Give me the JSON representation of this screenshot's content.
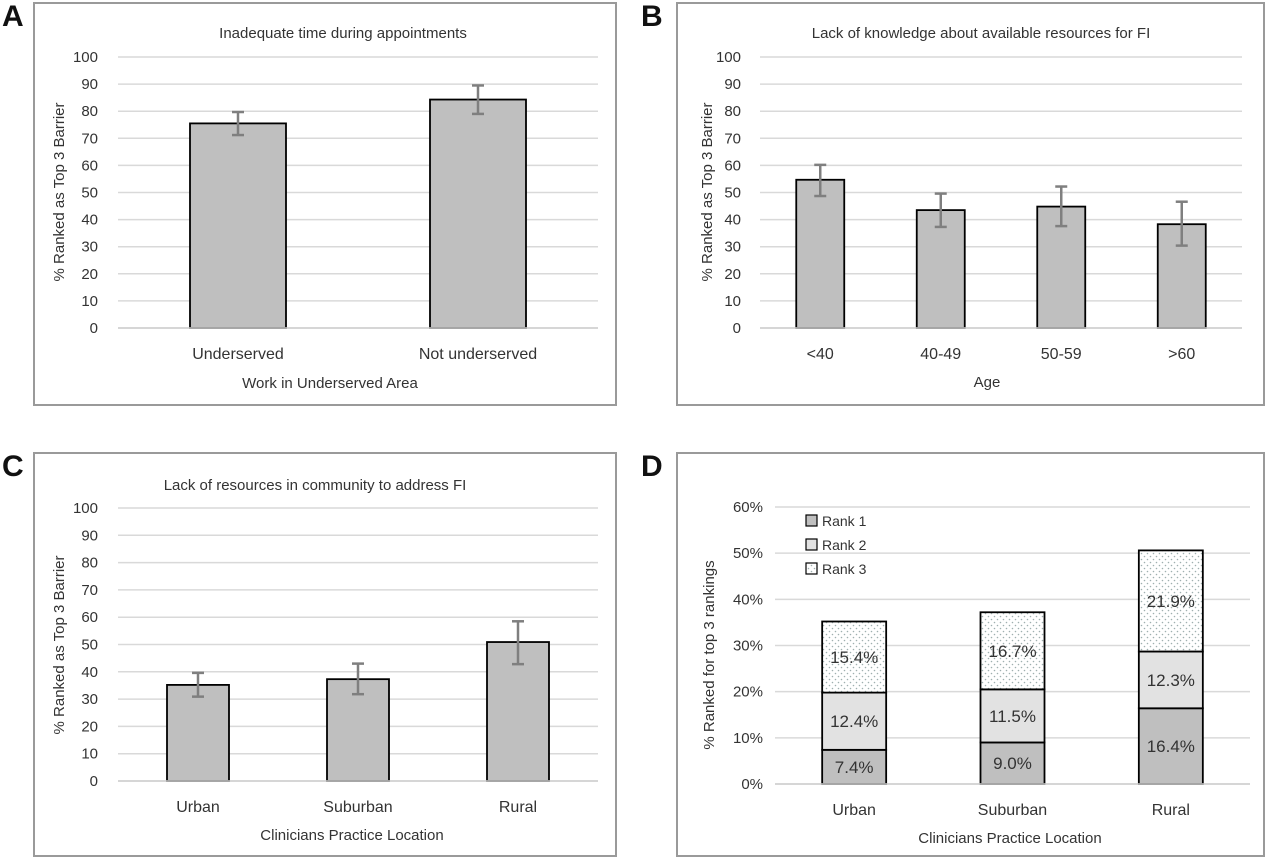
{
  "panels": [
    {
      "letter": "A"
    },
    {
      "letter": "B"
    },
    {
      "letter": "C"
    },
    {
      "letter": "D"
    }
  ],
  "chart_data": [
    {
      "type": "bar",
      "title": "Inadequate time during appointments",
      "xlabel": "Work in Underserved Area",
      "ylabel": "% Ranked as Top 3 Barrier",
      "ylim": [
        0,
        100
      ],
      "yticks": [
        "0",
        "10",
        "20",
        "30",
        "40",
        "50",
        "60",
        "70",
        "80",
        "90",
        "100"
      ],
      "categories": [
        "Underserved",
        "Not underserved"
      ],
      "values": [
        75.5,
        84.3
      ],
      "error_low": [
        71.2,
        79.0
      ],
      "error_high": [
        79.7,
        89.5
      ],
      "grid": true,
      "colors": {
        "bar": "#bfbfbf",
        "edge": "#000000",
        "error": "#7f7f7f",
        "grid": "#d9d9d9"
      }
    },
    {
      "type": "bar",
      "title": "Lack of knowledge about available resources for FI",
      "xlabel": "Age",
      "ylabel": "% Ranked as Top 3 Barrier",
      "ylim": [
        0,
        100
      ],
      "yticks": [
        "0",
        "10",
        "20",
        "30",
        "40",
        "50",
        "60",
        "70",
        "80",
        "90",
        "100"
      ],
      "categories": [
        "<40",
        "40-49",
        "50-59",
        ">60"
      ],
      "values": [
        54.7,
        43.5,
        44.8,
        38.3
      ],
      "error_low": [
        48.7,
        37.3,
        37.6,
        30.4
      ],
      "error_high": [
        60.2,
        49.6,
        52.2,
        46.6
      ],
      "grid": true,
      "colors": {
        "bar": "#bfbfbf",
        "edge": "#000000",
        "error": "#7f7f7f",
        "grid": "#d9d9d9"
      }
    },
    {
      "type": "bar",
      "title": "Lack of resources in community to address FI",
      "xlabel": "Clinicians Practice Location",
      "ylabel": "% Ranked as Top 3 Barrier",
      "ylim": [
        0,
        100
      ],
      "yticks": [
        "0",
        "10",
        "20",
        "30",
        "40",
        "50",
        "60",
        "70",
        "80",
        "90",
        "100"
      ],
      "categories": [
        "Urban",
        "Suburban",
        "Rural"
      ],
      "values": [
        35.2,
        37.3,
        50.9
      ],
      "error_low": [
        30.9,
        31.8,
        42.8
      ],
      "error_high": [
        39.6,
        43.0,
        58.5
      ],
      "grid": true,
      "colors": {
        "bar": "#bfbfbf",
        "edge": "#000000",
        "error": "#7f7f7f",
        "grid": "#d9d9d9"
      }
    },
    {
      "type": "stacked_bar",
      "title": "",
      "xlabel": "Clinicians Practice Location",
      "ylabel": "% Ranked for top 3 rankings",
      "ylim": [
        0,
        60
      ],
      "yticks": [
        "0%",
        "10%",
        "20%",
        "30%",
        "40%",
        "50%",
        "60%"
      ],
      "categories": [
        "Urban",
        "Suburban",
        "Rural"
      ],
      "series": [
        {
          "name": "Rank 1",
          "values": [
            7.4,
            9.0,
            16.4
          ],
          "labels": [
            "7.4%",
            "9.0%",
            "16.4%"
          ],
          "color": "#bfbfbf",
          "pattern": "solid"
        },
        {
          "name": "Rank 2",
          "values": [
            12.4,
            11.5,
            12.3
          ],
          "labels": [
            "12.4%",
            "11.5%",
            "12.3%"
          ],
          "color": "#e2e2e2",
          "pattern": "solid"
        },
        {
          "name": "Rank 3",
          "values": [
            15.4,
            16.7,
            21.9
          ],
          "labels": [
            "15.4%",
            "16.7%",
            "21.9%"
          ],
          "color": "#ffffff",
          "pattern": "dots"
        }
      ],
      "legend": "top-left",
      "grid": true,
      "colors": {
        "edge": "#000000",
        "grid": "#d9d9d9",
        "dots": "#9fb0b0"
      }
    }
  ]
}
